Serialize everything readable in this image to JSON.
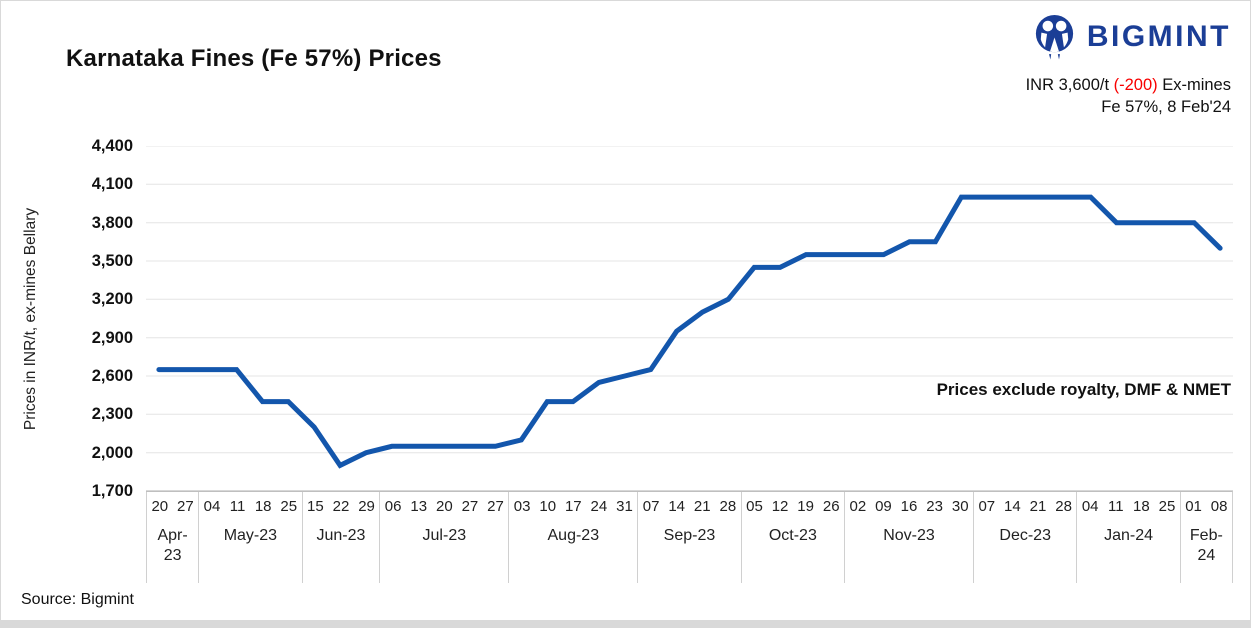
{
  "header": {
    "title": "Karnataka Fines (Fe 57%) Prices",
    "brand": "BIGMINT",
    "price": {
      "prefix": "INR 3,600/t ",
      "change": "(-200)",
      "suffix": " Ex-mines"
    },
    "subtitle_line2": "Fe 57%, 8 Feb'24"
  },
  "annotation": "Prices exclude royalty, DMF & NMET",
  "source": "Source: Bigmint",
  "colors": {
    "line": "#1356ac",
    "brand_navy": "#1b3e96",
    "negative_red": "#f80000",
    "grid": "#ebebeb",
    "axis": "#bfbfbf",
    "separator": "#d0d0d0"
  },
  "chart_data": {
    "type": "line",
    "title": "Karnataka Fines (Fe 57%) Prices",
    "xlabel": "",
    "ylabel": "Prices in INR/t, ex-mines Bellary",
    "ylim": [
      1700,
      4400
    ],
    "ytick_step": 300,
    "ytick_labels": [
      "4,400",
      "4,100",
      "3,800",
      "3,500",
      "3,200",
      "2,900",
      "2,600",
      "2,300",
      "2,000",
      "1,700"
    ],
    "grid": "horizontal",
    "legend_position": "none",
    "series_name": "Karnataka Fines Fe 57% price, INR/t ex-mines",
    "months": [
      {
        "label": "Apr-23",
        "weeks": [
          "20",
          "27"
        ],
        "values": [
          2650,
          2650
        ]
      },
      {
        "label": "May-23",
        "weeks": [
          "04",
          "11",
          "18",
          "25"
        ],
        "values": [
          2650,
          2650,
          2400,
          2400
        ]
      },
      {
        "label": "Jun-23",
        "weeks": [
          "15",
          "22",
          "29"
        ],
        "values": [
          2200,
          1900,
          2000
        ]
      },
      {
        "label": "Jul-23",
        "weeks": [
          "06",
          "13",
          "20",
          "27",
          "27"
        ],
        "values": [
          2050,
          2050,
          2050,
          2050,
          2050
        ]
      },
      {
        "label": "Aug-23",
        "weeks": [
          "03",
          "10",
          "17",
          "24",
          "31"
        ],
        "values": [
          2100,
          2400,
          2400,
          2550,
          2600
        ]
      },
      {
        "label": "Sep-23",
        "weeks": [
          "07",
          "14",
          "21",
          "28"
        ],
        "values": [
          2650,
          2950,
          3100,
          3200
        ]
      },
      {
        "label": "Oct-23",
        "weeks": [
          "05",
          "12",
          "19",
          "26"
        ],
        "values": [
          3450,
          3450,
          3550,
          3550
        ]
      },
      {
        "label": "Nov-23",
        "weeks": [
          "02",
          "09",
          "16",
          "23",
          "30"
        ],
        "values": [
          3550,
          3550,
          3650,
          3650,
          4000
        ]
      },
      {
        "label": "Dec-23",
        "weeks": [
          "07",
          "14",
          "21",
          "28"
        ],
        "values": [
          4000,
          4000,
          4000,
          4000
        ]
      },
      {
        "label": "Jan-24",
        "weeks": [
          "04",
          "11",
          "18",
          "25"
        ],
        "values": [
          4000,
          3800,
          3800,
          3800
        ]
      },
      {
        "label": "Feb-24",
        "weeks": [
          "01",
          "08"
        ],
        "values": [
          3800,
          3600
        ]
      }
    ]
  }
}
